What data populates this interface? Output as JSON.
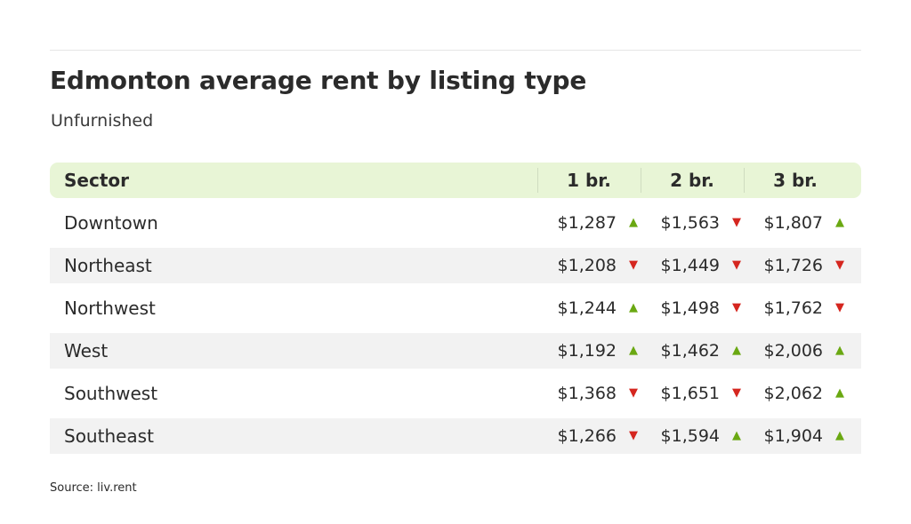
{
  "chart_data": {
    "type": "table",
    "title": "Edmonton average rent by listing type",
    "subtitle": "Unfurnished",
    "columns": [
      "Sector",
      "1 br.",
      "2 br.",
      "3 br."
    ],
    "rows": [
      {
        "sector": "Downtown",
        "cells": [
          {
            "value": "$1,287",
            "trend": "up"
          },
          {
            "value": "$1,563",
            "trend": "down"
          },
          {
            "value": "$1,807",
            "trend": "up"
          }
        ]
      },
      {
        "sector": "Northeast",
        "cells": [
          {
            "value": "$1,208",
            "trend": "down"
          },
          {
            "value": "$1,449",
            "trend": "down"
          },
          {
            "value": "$1,726",
            "trend": "down"
          }
        ]
      },
      {
        "sector": "Northwest",
        "cells": [
          {
            "value": "$1,244",
            "trend": "up"
          },
          {
            "value": "$1,498",
            "trend": "down"
          },
          {
            "value": "$1,762",
            "trend": "down"
          }
        ]
      },
      {
        "sector": "West",
        "cells": [
          {
            "value": "$1,192",
            "trend": "up"
          },
          {
            "value": "$1,462",
            "trend": "up"
          },
          {
            "value": "$2,006",
            "trend": "up"
          }
        ]
      },
      {
        "sector": "Southwest",
        "cells": [
          {
            "value": "$1,368",
            "trend": "down"
          },
          {
            "value": "$1,651",
            "trend": "down"
          },
          {
            "value": "$2,062",
            "trend": "up"
          }
        ]
      },
      {
        "sector": "Southeast",
        "cells": [
          {
            "value": "$1,266",
            "trend": "down"
          },
          {
            "value": "$1,594",
            "trend": "up"
          },
          {
            "value": "$1,904",
            "trend": "up"
          }
        ]
      }
    ],
    "source": "Source: liv.rent",
    "colors": {
      "header_bg": "#e8f5d6",
      "alt_row_bg": "#f2f2f2",
      "up": "#6aa812",
      "down": "#d5261f"
    },
    "icons": {
      "up": "triangle-up-icon",
      "down": "triangle-down-icon"
    }
  }
}
